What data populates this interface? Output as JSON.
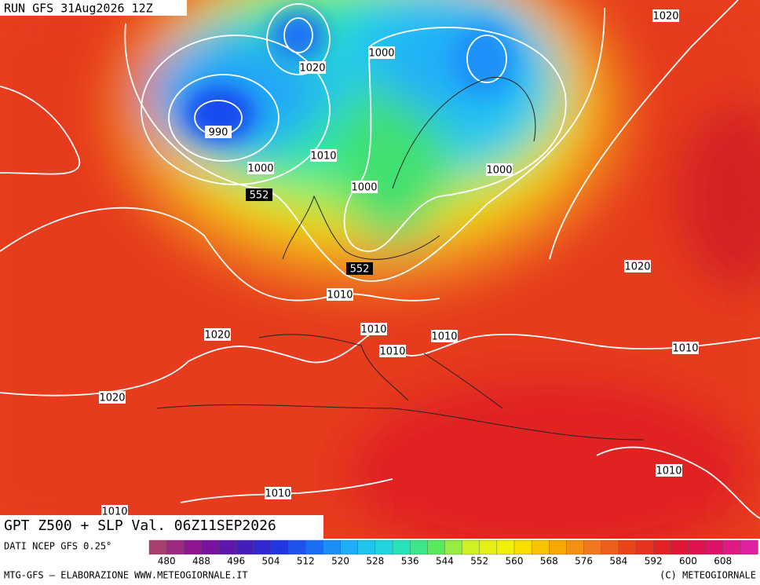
{
  "header": {
    "run": "RUN GFS 31Aug2026 12Z"
  },
  "footer": {
    "product": "GPT Z500 + SLP Val. 06Z11SEP2026",
    "source": "DATI NCEP GFS 0.25°",
    "credit": "MTG-GFS — ELABORAZIONE WWW.METEOGIORNALE.IT",
    "copyright": "(C) METEOGIORNALE"
  },
  "colorbar": {
    "ticks": [
      480,
      488,
      496,
      504,
      512,
      520,
      528,
      536,
      544,
      552,
      560,
      568,
      576,
      584,
      592,
      600,
      608
    ],
    "stops": [
      "#a8406f",
      "#8c0f95",
      "#5018b4",
      "#2030e0",
      "#1a70f5",
      "#20b8f8",
      "#20e0d0",
      "#50ea60",
      "#d8f020",
      "#f8f000",
      "#f8b000",
      "#f27a20",
      "#e84018",
      "#e01a28",
      "#e01060",
      "#e020a0"
    ]
  },
  "map_labels": [
    "990",
    "1000",
    "1010",
    "1020",
    "1000",
    "1000",
    "1000",
    "1020",
    "552",
    "552",
    "1010",
    "1020",
    "1010",
    "1010",
    "1010",
    "1020",
    "1010",
    "1020",
    "1010",
    "1010",
    "1010"
  ]
}
